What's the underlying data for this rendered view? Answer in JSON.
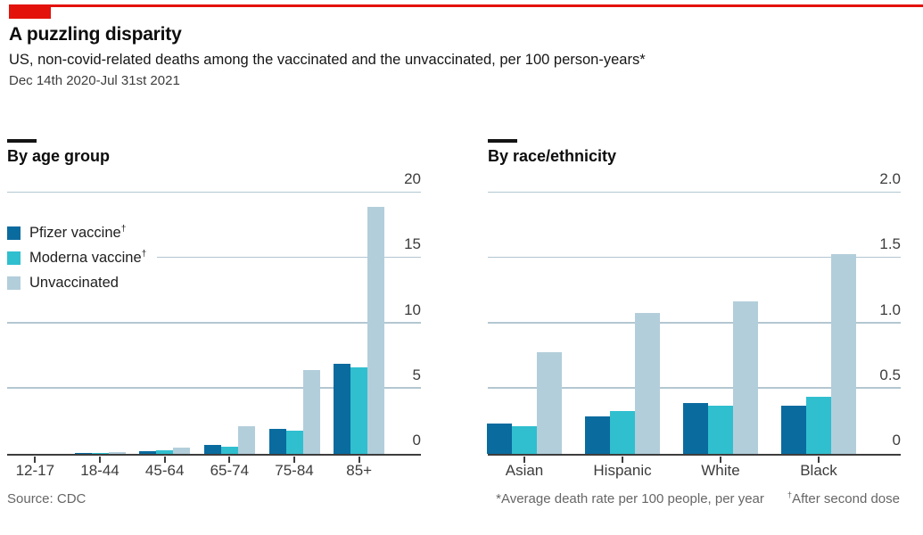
{
  "header": {
    "title": "A puzzling disparity",
    "subtitle": "US, non-covid-related deaths among the vaccinated and the unvaccinated, per 100 person-years*",
    "date_range": "Dec 14th 2020-Jul 31st 2021"
  },
  "legend": {
    "items": [
      {
        "label": "Pfizer vaccine",
        "sup": "†",
        "color": "#0a6b9f"
      },
      {
        "label": "Moderna vaccine",
        "sup": "†",
        "color": "#30bfcf"
      },
      {
        "label": "Unvaccinated",
        "sup": "",
        "color": "#b3cedb"
      }
    ]
  },
  "chart_data": [
    {
      "type": "bar",
      "title": "By age group",
      "categories": [
        "12-17",
        "18-44",
        "45-64",
        "65-74",
        "75-84",
        "85+"
      ],
      "series": [
        {
          "name": "Pfizer vaccine†",
          "color": "#0a6b9f",
          "values": [
            0,
            0.05,
            0.2,
            0.65,
            1.9,
            6.9
          ]
        },
        {
          "name": "Moderna vaccine†",
          "color": "#30bfcf",
          "values": [
            0,
            0.05,
            0.25,
            0.55,
            1.8,
            6.6
          ]
        },
        {
          "name": "Unvaccinated",
          "color": "#b3cedb",
          "values": [
            0,
            0.15,
            0.5,
            2.1,
            6.4,
            18.9
          ]
        }
      ],
      "ylim": [
        0,
        20
      ],
      "yticks": [
        "0",
        "5",
        "10",
        "15",
        "20"
      ],
      "grid": true,
      "legend_position": "inside-top-left",
      "y_axis_side": "right"
    },
    {
      "type": "bar",
      "title": "By race/ethnicity",
      "categories": [
        "Asian",
        "Hispanic",
        "White",
        "Black"
      ],
      "series": [
        {
          "name": "Pfizer vaccine†",
          "color": "#0a6b9f",
          "values": [
            0.23,
            0.29,
            0.39,
            0.37
          ]
        },
        {
          "name": "Moderna vaccine†",
          "color": "#30bfcf",
          "values": [
            0.21,
            0.33,
            0.37,
            0.44
          ]
        },
        {
          "name": "Unvaccinated",
          "color": "#b3cedb",
          "values": [
            0.78,
            1.08,
            1.17,
            1.53
          ]
        }
      ],
      "ylim": [
        0,
        2.0
      ],
      "yticks": [
        "0",
        "0.5",
        "1.0",
        "1.5",
        "2.0"
      ],
      "grid": true,
      "y_axis_side": "right"
    }
  ],
  "footer": {
    "source": "Source: CDC",
    "footnote_left": "*Average death rate per 100 people, per year",
    "footnote_right_sup": "†",
    "footnote_right": "After second dose"
  },
  "colors": {
    "accent_red": "#e3120b",
    "pfizer_blue": "#0a6b9f",
    "moderna_cyan": "#30bfcf",
    "unvaccinated_light": "#b3cedb",
    "gridline": "#b3c7d1",
    "axis": "#3d3d3d",
    "note_gray": "#666666"
  }
}
